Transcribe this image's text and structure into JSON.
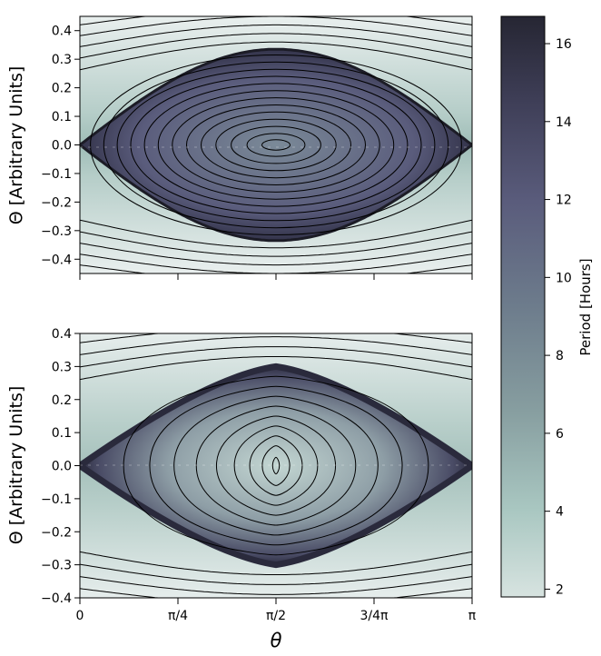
{
  "chart_data": [
    {
      "type": "heatmap",
      "panel": "top",
      "title": "",
      "xlabel": "",
      "ylabel": "Θ [Arbitrary Units]",
      "xlim": [
        0,
        3.14159
      ],
      "ylim": [
        -0.45,
        0.45
      ],
      "xticks": [
        0,
        0.7854,
        1.5708,
        2.3562,
        3.14159
      ],
      "xtick_labels": [
        "",
        "",
        "",
        "",
        ""
      ],
      "yticks": [
        -0.4,
        -0.3,
        -0.2,
        -0.1,
        0.0,
        0.1,
        0.2,
        0.3,
        0.4
      ],
      "ytick_labels": [
        "−0.4",
        "−0.3",
        "−0.2",
        "−0.1",
        "0.0",
        "0.1",
        "0.2",
        "0.3",
        "0.4"
      ],
      "separatrix_half_width": 0.335,
      "center": [
        1.5708,
        0.0
      ],
      "inner_contour_levels": [
        0.018,
        0.04,
        0.065,
        0.09,
        0.115,
        0.14,
        0.165,
        0.19,
        0.215,
        0.24,
        0.265,
        0.29,
        0.315
      ],
      "outer_contour_levels": [
        0.36,
        0.39,
        0.42,
        0.45,
        0.48,
        0.51,
        0.54,
        0.57,
        0.6
      ]
    },
    {
      "type": "heatmap",
      "panel": "bottom",
      "title": "",
      "xlabel": "θ",
      "ylabel": "Θ [Arbitrary Units]",
      "xlim": [
        0,
        3.14159
      ],
      "ylim": [
        -0.4,
        0.4
      ],
      "xticks": [
        0,
        0.7854,
        1.5708,
        2.3562,
        3.14159
      ],
      "xtick_labels": [
        "0",
        "π/4",
        "π/2",
        "3/4π",
        "π"
      ],
      "yticks": [
        -0.4,
        -0.3,
        -0.2,
        -0.1,
        0.0,
        0.1,
        0.2,
        0.3,
        0.4
      ],
      "ytick_labels": [
        "−0.4",
        "−0.3",
        "−0.2",
        "−0.1",
        "0.0",
        "0.1",
        "0.2",
        "0.3",
        "0.4"
      ],
      "separatrix_half_width": 0.3,
      "center": [
        1.5708,
        0.0
      ],
      "inner_contour_levels": [
        0.025,
        0.06,
        0.09,
        0.12,
        0.15,
        0.18,
        0.21,
        0.24,
        0.27
      ],
      "outer_contour_levels": [
        0.33,
        0.36,
        0.39,
        0.42,
        0.45,
        0.48,
        0.51,
        0.54
      ]
    }
  ],
  "colorbar": {
    "label": "Period [Hours]",
    "range": [
      1.8,
      16.7
    ],
    "ticks": [
      2,
      4,
      6,
      8,
      10,
      12,
      14,
      16
    ],
    "tick_labels": [
      "2",
      "4",
      "6",
      "8",
      "10",
      "12",
      "14",
      "16"
    ],
    "colors": [
      "#d7e3e0",
      "#a9c7c1",
      "#879ea0",
      "#6d7c8c",
      "#5a5c7c",
      "#3f3f58",
      "#262633"
    ]
  }
}
